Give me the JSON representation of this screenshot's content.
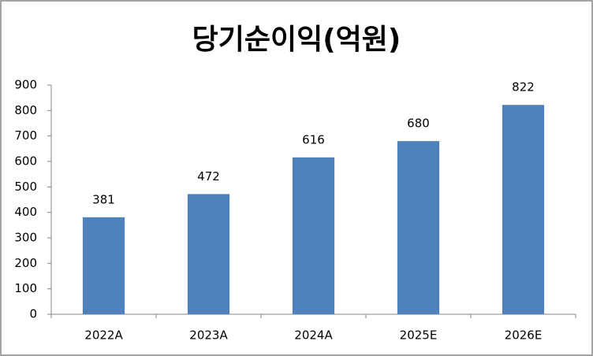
{
  "chart_data": {
    "type": "bar",
    "title": "당기순이익(억원)",
    "categories": [
      "2022A",
      "2023A",
      "2024A",
      "2025E",
      "2026E"
    ],
    "values": [
      381,
      472,
      616,
      680,
      822
    ],
    "color": "#4f81bd",
    "ylim": [
      0,
      900
    ],
    "yticks": [
      0,
      100,
      200,
      300,
      400,
      500,
      600,
      700,
      800,
      900
    ],
    "grid": false
  }
}
